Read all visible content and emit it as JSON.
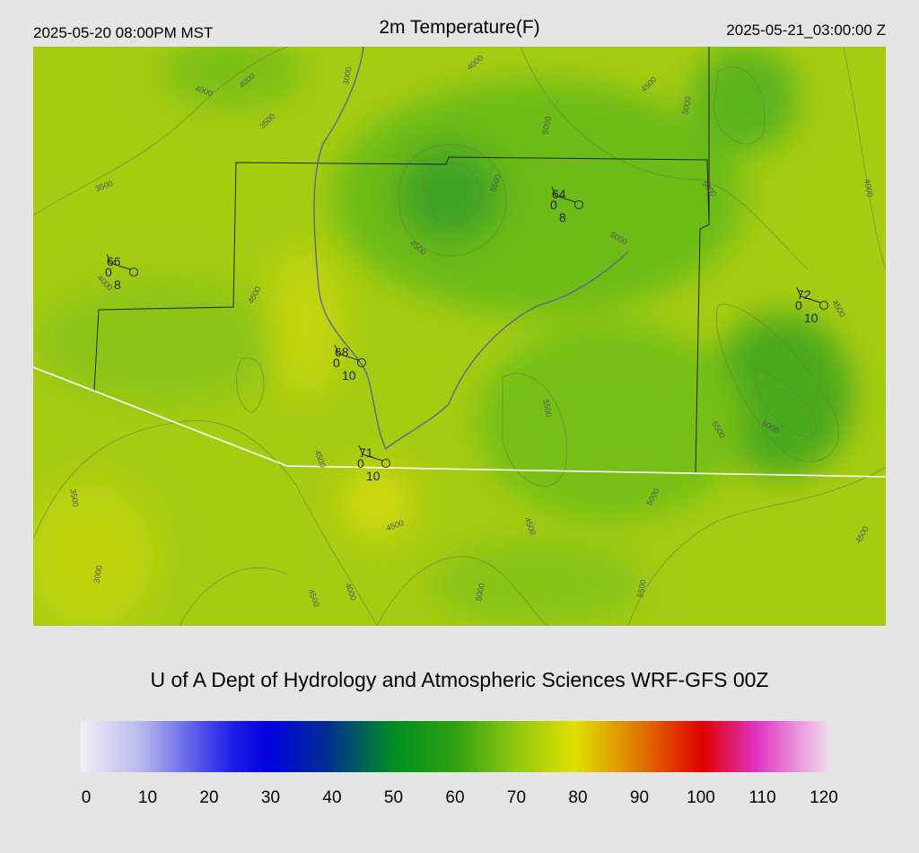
{
  "header": {
    "left": "2025-05-20 08:00PM MST",
    "title": "2m Temperature(F)",
    "right": "2025-05-21_03:00:00 Z"
  },
  "stations": [
    {
      "temperature": 66,
      "value": 0,
      "wind": 8
    },
    {
      "temperature": 64,
      "value": 0,
      "wind": 8
    },
    {
      "temperature": 72,
      "value": 0,
      "wind": 10
    },
    {
      "temperature": 68,
      "value": 0,
      "wind": 10
    },
    {
      "temperature": 71,
      "value": 0,
      "wind": 10
    }
  ],
  "contour_labels": [
    "4000",
    "4000",
    "3000",
    "3500",
    "4000",
    "4500",
    "5000",
    "5000",
    "3500",
    "5500",
    "5000",
    "4000",
    "4500",
    "5000",
    "4000",
    "4500",
    "4500",
    "5500",
    "5500",
    "6000",
    "4500",
    "3500",
    "5000",
    "4500",
    "4500",
    "4500",
    "3000",
    "4000",
    "4500",
    "5000",
    "5500"
  ],
  "footer": "U of A Dept of Hydrology and Atmospheric Sciences WRF-GFS 00Z",
  "colorbar": {
    "ticks": [
      0,
      10,
      20,
      30,
      40,
      50,
      60,
      70,
      80,
      90,
      100,
      110,
      120
    ]
  }
}
